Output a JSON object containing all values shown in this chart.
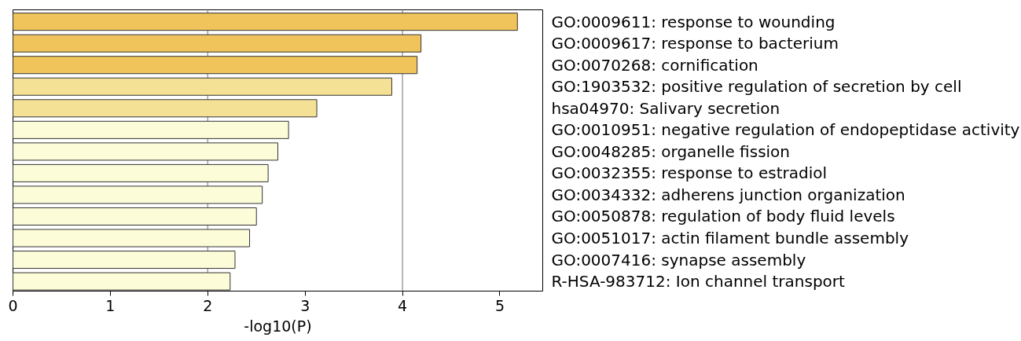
{
  "chart_data": {
    "type": "bar",
    "orientation": "horizontal",
    "xlabel": "-log10(P)",
    "categories": [
      "GO:0009611: response to wounding",
      "GO:0009617: response to bacterium",
      "GO:0070268: cornification",
      "GO:1903532: positive regulation of secretion by cell",
      "hsa04970: Salivary secretion",
      "GO:0010951: negative regulation of endopeptidase activity",
      "GO:0048285: organelle fission",
      "GO:0032355: response to estradiol",
      "GO:0034332: adherens junction organization",
      "GO:0050878: regulation of body fluid levels",
      "GO:0051017: actin filament bundle assembly",
      "GO:0007416: synapse assembly",
      "R-HSA-983712: Ion channel transport"
    ],
    "values": [
      5.18,
      4.19,
      4.15,
      3.89,
      3.12,
      2.83,
      2.72,
      2.62,
      2.56,
      2.5,
      2.43,
      2.28,
      2.23
    ],
    "colors": [
      "#f0c45a",
      "#f0c45a",
      "#f0c45a",
      "#f5e196",
      "#f5e196",
      "#fdfcd8",
      "#fdfcd8",
      "#fdfcd8",
      "#fdfcd8",
      "#fdfcd8",
      "#fdfcd8",
      "#fdfcd8",
      "#fdfcd8"
    ],
    "xlim": [
      0,
      5.44
    ],
    "xticks": [
      0,
      1,
      2,
      3,
      4,
      5
    ],
    "ref_lines": [
      {
        "axis": "x",
        "value": 2,
        "color": "#a0a0a0"
      },
      {
        "axis": "x",
        "value": 4,
        "color": "#a0a0a0"
      }
    ],
    "grid": false
  }
}
